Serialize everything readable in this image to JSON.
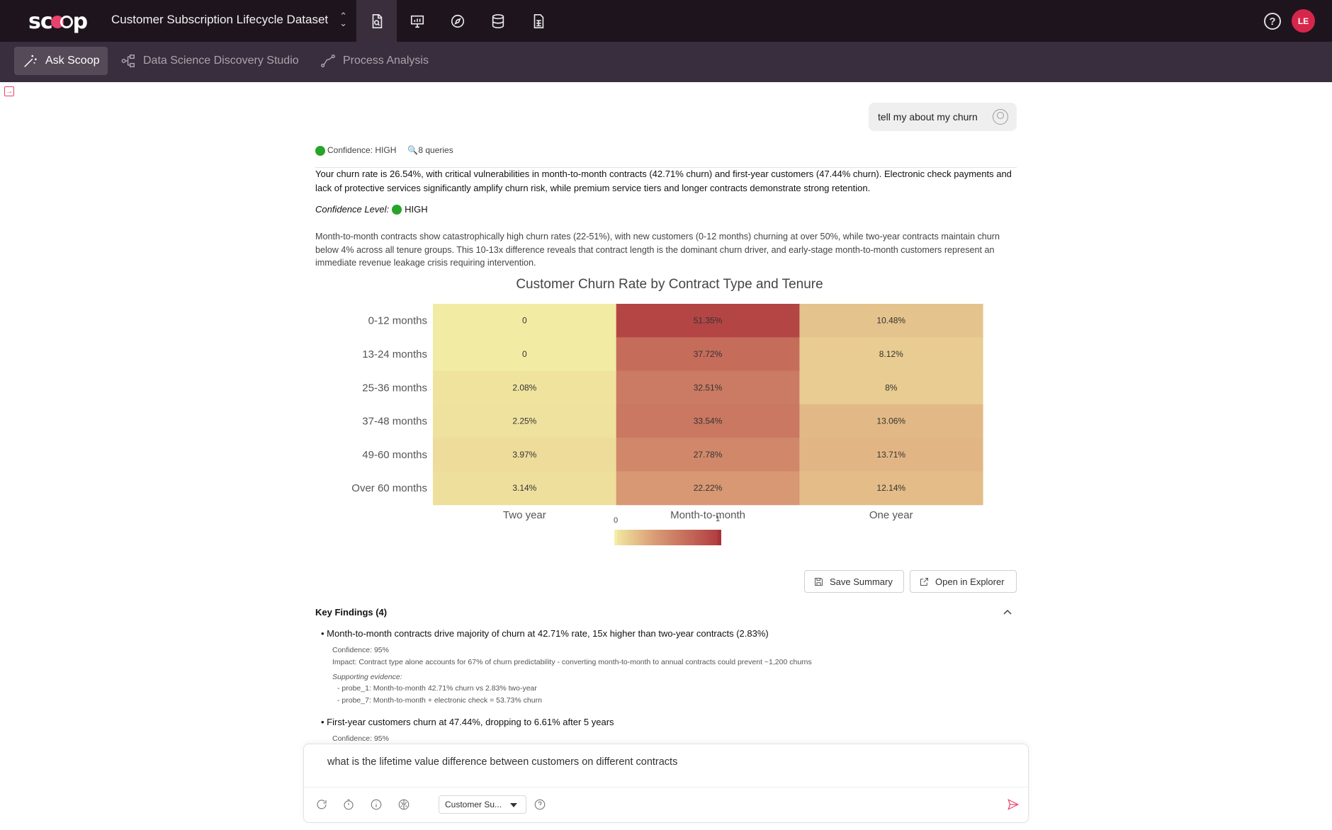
{
  "app": {
    "logo_text": "scoop",
    "dataset_name": "Customer Subscription Lifecycle Dataset",
    "avatar_initials": "LE",
    "top_icons": [
      "report-icon",
      "presentation-icon",
      "compass-icon",
      "database-icon",
      "spreadsheet-icon"
    ]
  },
  "subnav": {
    "ask": "Ask Scoop",
    "discovery": "Data Science Discovery Studio",
    "process": "Process Analysis"
  },
  "chat": {
    "user_message": "tell my about my churn",
    "confidence_badge": "Confidence: HIGH",
    "queries": "8 queries",
    "summary": "Your churn rate is 26.54%, with critical vulnerabilities in month-to-month contracts (42.71% churn) and first-year customers (47.44% churn). Electronic check payments and lack of protective services significantly amplify churn risk, while premium service tiers and longer contracts demonstrate strong retention.",
    "confidence_level_label": "Confidence Level:",
    "confidence_level_value": "HIGH",
    "description": "Month-to-month contracts show catastrophically high churn rates (22-51%), with new customers (0-12 months) churning at over 50%, while two-year contracts maintain churn below 4% across all tenure groups. This 10-13x difference reveals that contract length is the dominant churn driver, and early-stage month-to-month customers represent an immediate revenue leakage crisis requiring intervention."
  },
  "chart_data": {
    "type": "heatmap",
    "title": "Customer Churn Rate by Contract Type and Tenure",
    "x_categories": [
      "Two year",
      "Month-to-month",
      "One year"
    ],
    "y_categories": [
      "0-12 months",
      "13-24 months",
      "25-36 months",
      "37-48 months",
      "49-60 months",
      "Over 60 months"
    ],
    "values": [
      [
        0,
        51.35,
        10.48
      ],
      [
        0,
        37.72,
        8.12
      ],
      [
        2.08,
        32.51,
        8
      ],
      [
        2.25,
        33.54,
        13.06
      ],
      [
        3.97,
        27.78,
        13.71
      ],
      [
        3.14,
        22.22,
        12.14
      ]
    ],
    "labels": [
      [
        "0",
        "51.35%",
        "10.48%"
      ],
      [
        "0",
        "37.72%",
        "8.12%"
      ],
      [
        "2.08%",
        "32.51%",
        "8%"
      ],
      [
        "2.25%",
        "33.54%",
        "13.06%"
      ],
      [
        "3.97%",
        "27.78%",
        "13.71%"
      ],
      [
        "3.14%",
        "22.22%",
        "12.14%"
      ]
    ],
    "colorscale": [
      "#f2eba3",
      "#b03a3f"
    ],
    "colorbar_ticks": [
      "0",
      "1"
    ],
    "value_range": [
      0,
      55
    ]
  },
  "actions": {
    "save": "Save Summary",
    "explorer": "Open in Explorer"
  },
  "findings": {
    "title": "Key Findings (4)",
    "items": [
      {
        "headline": "• Month-to-month contracts drive majority of churn at 42.71% rate, 15x higher than two-year contracts (2.83%)",
        "confidence": "Confidence: 95%",
        "impact": "Impact: Contract type alone accounts for 67% of churn predictability - converting month-to-month to annual contracts could prevent ~1,200 churns",
        "evidence_label": "Supporting evidence:",
        "evidence": [
          "- probe_1: Month-to-month 42.71% churn vs 2.83% two-year",
          "- probe_7: Month-to-month + electronic check = 53.73% churn"
        ]
      },
      {
        "headline": "• First-year customers churn at 47.44%, dropping to 6.61% after 5 years",
        "confidence": "Confidence: 95%"
      }
    ]
  },
  "input": {
    "text": "what is the lifetime value difference between customers on different contracts",
    "select_value": "Customer Su..."
  }
}
